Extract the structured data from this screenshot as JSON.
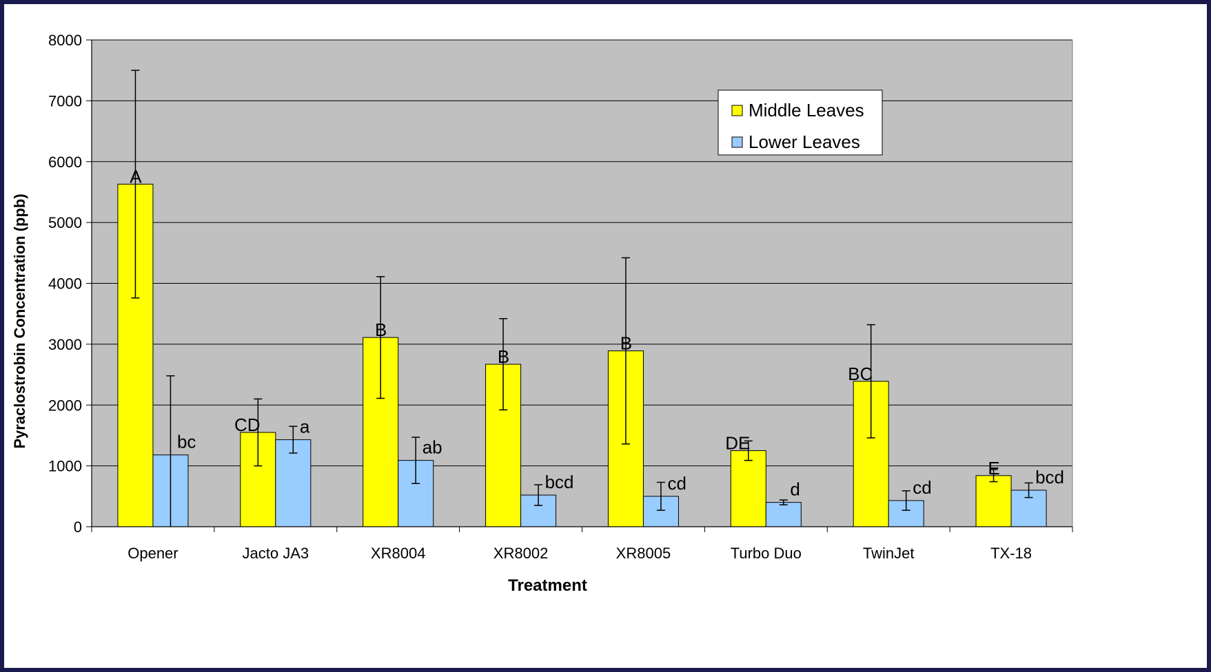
{
  "chart_data": {
    "type": "bar",
    "title": "",
    "xlabel": "Treatment",
    "ylabel": "Pyraclostrobin Concentration (ppb)",
    "ylim": [
      0,
      8000
    ],
    "yticks": [
      "0",
      "1000",
      "2000",
      "3000",
      "4000",
      "5000",
      "6000",
      "7000",
      "8000"
    ],
    "grid": true,
    "legend_position": "top-right",
    "categories": [
      "Opener",
      "Jacto JA3",
      "XR8004",
      "XR8002",
      "XR8005",
      "Turbo Duo",
      "TwinJet",
      "TX-18"
    ],
    "series": [
      {
        "name": "Middle Leaves",
        "color": "#ffff00",
        "values": [
          5630,
          1550,
          3110,
          2670,
          2890,
          1250,
          2390,
          840
        ],
        "error": [
          1870,
          550,
          1000,
          750,
          1530,
          160,
          930,
          100
        ],
        "letters": [
          "A",
          "CD",
          "B",
          "B",
          "B",
          "DE",
          "BC",
          "E"
        ]
      },
      {
        "name": "Lower Leaves",
        "color": "#99ccff",
        "values": [
          1180,
          1430,
          1090,
          520,
          500,
          400,
          430,
          600
        ],
        "error": [
          1300,
          220,
          380,
          170,
          230,
          40,
          160,
          120
        ],
        "letters": [
          "bc",
          "a",
          "ab",
          "bcd",
          "cd",
          "d",
          "cd",
          "bcd"
        ]
      }
    ]
  }
}
